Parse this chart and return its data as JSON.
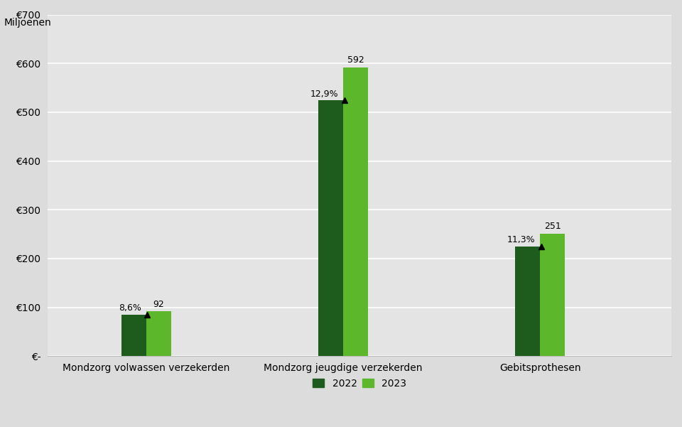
{
  "categories": [
    "Mondzorg volwassen verzekerden",
    "Mondzorg jeugdige verzekerden",
    "Gebitsprothesen"
  ],
  "values_2022": [
    85,
    524,
    225
  ],
  "values_2023": [
    92,
    592,
    251
  ],
  "pct_changes": [
    "8,6%",
    "12,9%",
    "11,3%"
  ],
  "color_2022": "#1e5c1e",
  "color_2023": "#5cb82a",
  "bg_color": "#dcdcdc",
  "plot_bg_color": "#e4e4e4",
  "ylabel": "Miljoenen",
  "ytick_labels": [
    "€-",
    "€100",
    "€200",
    "€300",
    "€400",
    "€500",
    "€600",
    "€700"
  ],
  "ytick_values": [
    0,
    100,
    200,
    300,
    400,
    500,
    600,
    700
  ],
  "legend_2022": "2022",
  "legend_2023": "2023",
  "ylim": [
    0,
    700
  ],
  "bar_width": 0.38,
  "group_positions": [
    1.5,
    4.5,
    7.5
  ],
  "xlim": [
    0,
    9.5
  ]
}
